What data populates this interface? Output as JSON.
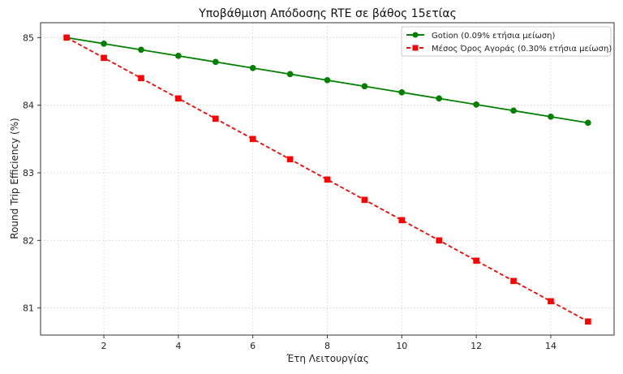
{
  "chart_data": {
    "type": "line",
    "title": "Υποβάθμιση Απόδοσης RTE σε βάθος 15ετίας",
    "xlabel": "Έτη Λειτουργίας",
    "ylabel": "Round Trip Efficiency (%)",
    "x": [
      1,
      2,
      3,
      4,
      5,
      6,
      7,
      8,
      9,
      10,
      11,
      12,
      13,
      14,
      15
    ],
    "xticks": [
      2,
      4,
      6,
      8,
      10,
      12,
      14
    ],
    "yticks": [
      81,
      82,
      83,
      84,
      85
    ],
    "xlim": [
      0.3,
      15.7
    ],
    "ylim": [
      80.6,
      85.22
    ],
    "grid": true,
    "legend_position": "upper right",
    "series": [
      {
        "name": "Gotion (0.09% ετήσια μείωση)",
        "color": "#008000",
        "linestyle": "solid",
        "marker": "circle",
        "values": [
          85.0,
          84.91,
          84.82,
          84.73,
          84.64,
          84.55,
          84.46,
          84.37,
          84.28,
          84.19,
          84.1,
          84.01,
          83.92,
          83.83,
          83.74
        ]
      },
      {
        "name": "Μέσος Όρος Αγοράς (0.30% ετήσια μείωση)",
        "color": "#ff0000",
        "linestyle": "dashed",
        "marker": "square",
        "values": [
          85.0,
          84.7,
          84.4,
          84.1,
          83.8,
          83.5,
          83.2,
          82.9,
          82.6,
          82.3,
          82.0,
          81.7,
          81.4,
          81.1,
          80.8
        ]
      }
    ]
  }
}
